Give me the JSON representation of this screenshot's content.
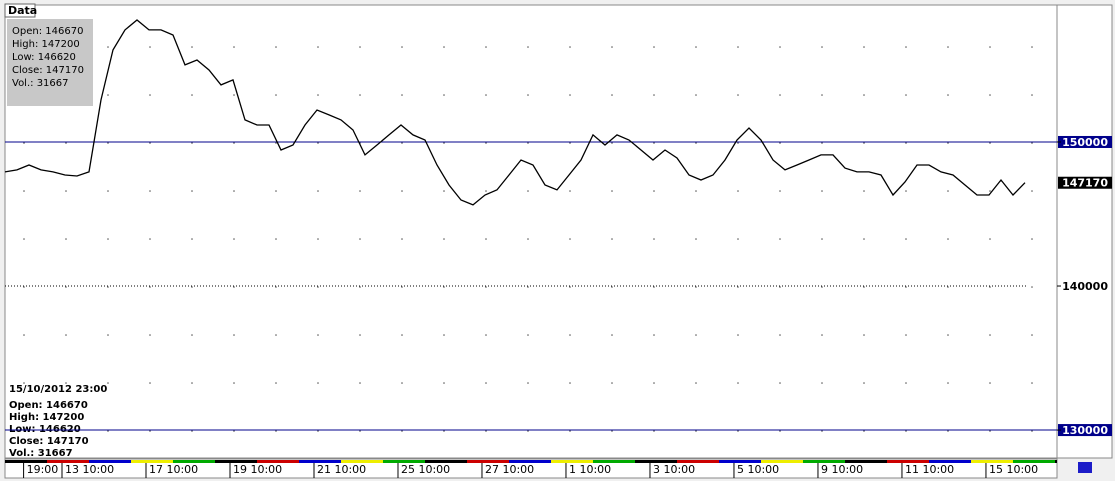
{
  "chart_data": {
    "type": "line",
    "tab": "Data",
    "legend_date": "15/10/2012 23:00",
    "info": [
      "Open: 146670",
      "High: 147200",
      "Low: 146620",
      "Close: 147170",
      "Vol.: 31667"
    ],
    "x": [
      0,
      1,
      2,
      3,
      4,
      5,
      6,
      7,
      8,
      9,
      10,
      11,
      12,
      13,
      14,
      15,
      16,
      17,
      18,
      19,
      20,
      21,
      22,
      23,
      24,
      25,
      26,
      27,
      28,
      29,
      30,
      31,
      32,
      33,
      34,
      35,
      36,
      37,
      38,
      39,
      40,
      41,
      42,
      43,
      44,
      45,
      46,
      47,
      48,
      49,
      50,
      51,
      52,
      53,
      54,
      55,
      56,
      57,
      58,
      59,
      60,
      61,
      62,
      63,
      64,
      65,
      66,
      67,
      68,
      69,
      70,
      71,
      72,
      73,
      74,
      75,
      76,
      77,
      78,
      79,
      80,
      81,
      82,
      83,
      84,
      85
    ],
    "series": [
      {
        "color": "#000000",
        "values": [
          147920,
          148060,
          148400,
          148060,
          147920,
          147710,
          147640,
          147920,
          152920,
          156390,
          157780,
          158470,
          157780,
          157780,
          157430,
          155350,
          155690,
          155000,
          153960,
          154310,
          151530,
          151180,
          151180,
          149440,
          149790,
          151180,
          152220,
          151880,
          151530,
          150830,
          149100,
          149790,
          150490,
          151180,
          150490,
          150140,
          148400,
          147010,
          145970,
          145630,
          146320,
          146670,
          147710,
          148750,
          148400,
          147010,
          146670,
          147710,
          148750,
          150490,
          149790,
          150490,
          150140,
          149440,
          148750,
          149440,
          148890,
          147710,
          147360,
          147710,
          148750,
          150140,
          150970,
          150140,
          148750,
          148060,
          148400,
          148750,
          149100,
          149100,
          148190,
          147920,
          147920,
          147710,
          146320,
          147220,
          148400,
          148400,
          147920,
          147710,
          147010,
          146320,
          146320,
          147360,
          146320,
          147170
        ]
      }
    ],
    "xlim": [
      0,
      87.67
    ],
    "xticks": [
      {
        "value": 1.8,
        "label": "19:00"
      },
      {
        "value": 5,
        "label": "13 10:00"
      },
      {
        "value": 12,
        "label": "17 10:00"
      },
      {
        "value": 19,
        "label": "19 10:00"
      },
      {
        "value": 26,
        "label": "21 10:00"
      },
      {
        "value": 33,
        "label": "25 10:00"
      },
      {
        "value": 40,
        "label": "27 10:00"
      },
      {
        "value": 47,
        "label": "1 10:00"
      },
      {
        "value": 54,
        "label": "3 10:00"
      },
      {
        "value": 61,
        "label": "5 10:00"
      },
      {
        "value": 68,
        "label": "9 10:00"
      },
      {
        "value": 75,
        "label": "11 10:00"
      },
      {
        "value": 82,
        "label": "15 10:00"
      }
    ],
    "ylim": [
      128060,
      159510
    ],
    "yticks": [
      130000,
      140000,
      150000
    ],
    "grid_styles": [
      "solid",
      "dotted",
      "solid"
    ]
  }
}
